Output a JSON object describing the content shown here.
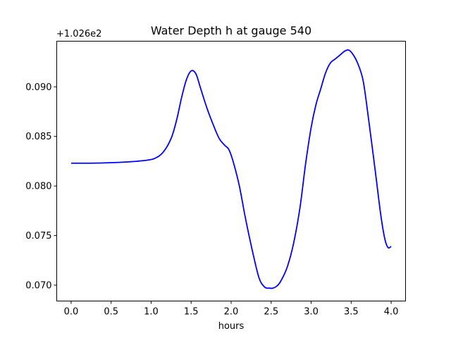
{
  "chart_data": {
    "type": "line",
    "title": "Water Depth h at gauge 540",
    "xlabel": "hours",
    "ylabel": "",
    "y_offset_label": "+1.026e2",
    "y_offset": 102.6,
    "xlim": [
      -0.18,
      4.18
    ],
    "ylim": [
      0.0684,
      0.0946
    ],
    "x_ticks": [
      0.0,
      0.5,
      1.0,
      1.5,
      2.0,
      2.5,
      3.0,
      3.5,
      4.0
    ],
    "x_tick_labels": [
      "0.0",
      "0.5",
      "1.0",
      "1.5",
      "2.0",
      "2.5",
      "3.0",
      "3.5",
      "4.0"
    ],
    "y_ticks": [
      0.07,
      0.075,
      0.08,
      0.085,
      0.09
    ],
    "y_tick_labels": [
      "0.070",
      "0.075",
      "0.080",
      "0.085",
      "0.090"
    ],
    "grid": false,
    "legend": "none",
    "series": [
      {
        "color": "#0000ff",
        "x": [
          0.0,
          0.25,
          0.5,
          0.75,
          0.95,
          1.05,
          1.15,
          1.25,
          1.32,
          1.38,
          1.44,
          1.5,
          1.56,
          1.62,
          1.7,
          1.78,
          1.85,
          1.92,
          1.97,
          2.02,
          2.1,
          2.18,
          2.27,
          2.35,
          2.42,
          2.47,
          2.52,
          2.57,
          2.62,
          2.7,
          2.78,
          2.86,
          2.93,
          3.0,
          3.06,
          3.12,
          3.18,
          3.24,
          3.3,
          3.36,
          3.42,
          3.47,
          3.52,
          3.58,
          3.65,
          3.72,
          3.8,
          3.87,
          3.92,
          3.96,
          4.0
        ],
        "y": [
          0.0823,
          0.0823,
          0.08235,
          0.08245,
          0.0826,
          0.0828,
          0.0834,
          0.0848,
          0.0867,
          0.0889,
          0.0907,
          0.0916,
          0.0913,
          0.0898,
          0.0878,
          0.0861,
          0.0848,
          0.0841,
          0.0837,
          0.0826,
          0.0801,
          0.0767,
          0.0733,
          0.0707,
          0.0698,
          0.0697,
          0.0697,
          0.0699,
          0.0704,
          0.0718,
          0.0742,
          0.0778,
          0.0822,
          0.0859,
          0.0882,
          0.0898,
          0.0914,
          0.0924,
          0.0928,
          0.0932,
          0.0936,
          0.0937,
          0.0933,
          0.0924,
          0.0906,
          0.0866,
          0.0816,
          0.0771,
          0.0747,
          0.0738,
          0.0739
        ]
      }
    ]
  }
}
